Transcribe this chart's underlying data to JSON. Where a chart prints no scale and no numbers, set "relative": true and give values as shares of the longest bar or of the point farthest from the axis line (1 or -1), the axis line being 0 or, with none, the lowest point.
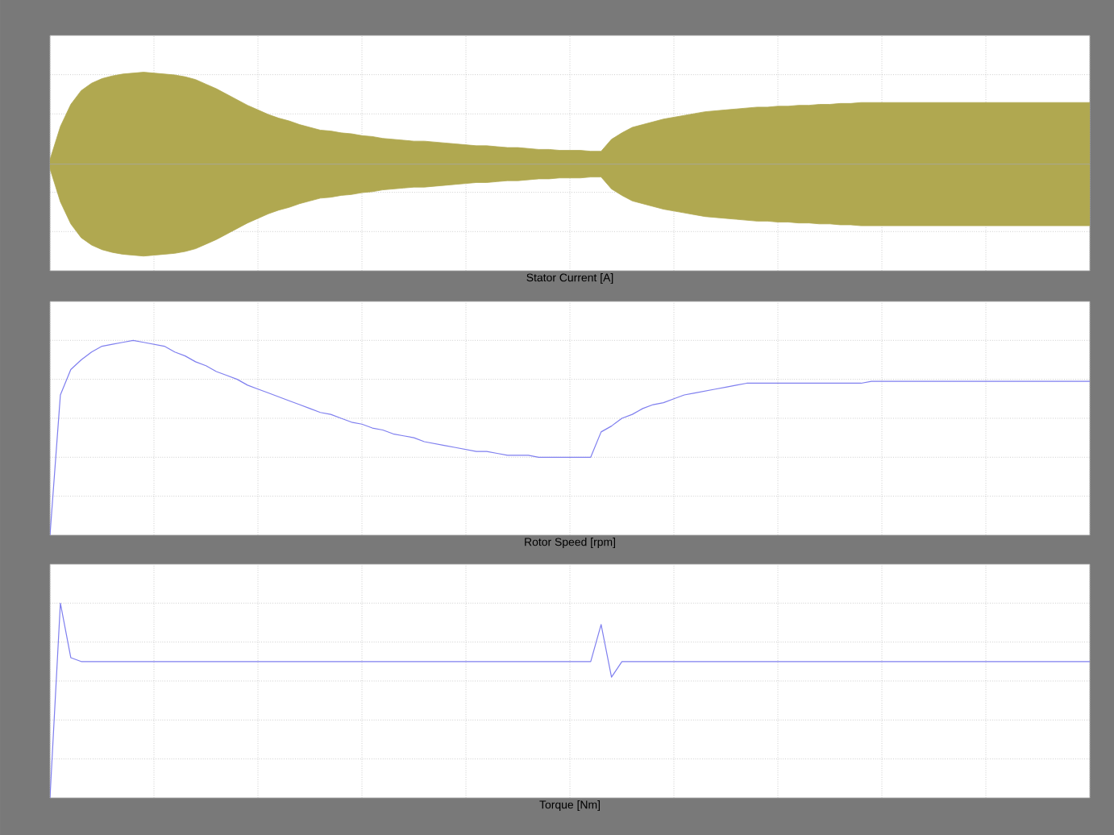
{
  "chart_data": [
    {
      "type": "area",
      "title": "Stator Current [A]",
      "relative": true,
      "grid": true,
      "categories": [
        null,
        null,
        null,
        null,
        null,
        null,
        null,
        null,
        null,
        null,
        null,
        null,
        null,
        null,
        null,
        null,
        null,
        null,
        null,
        null,
        null,
        null,
        null,
        null,
        null,
        null,
        null,
        null,
        null,
        null,
        null,
        null,
        null,
        null,
        null,
        null,
        null,
        null,
        null,
        null,
        null,
        null,
        null,
        null,
        null,
        null,
        null,
        null,
        null,
        null,
        null,
        null,
        null,
        null,
        null,
        null,
        null,
        null,
        null,
        null,
        null,
        null,
        null,
        null,
        null,
        null,
        null,
        null,
        null,
        null,
        null,
        null,
        null,
        null,
        null,
        null,
        null,
        null,
        null,
        null,
        null,
        null,
        null,
        null,
        null,
        null,
        null,
        null,
        null,
        null,
        null,
        null,
        null,
        null,
        null,
        null,
        null,
        null,
        null,
        null,
        null
      ],
      "series": [
        {
          "color": "#b0a850",
          "values": [
            0.05,
            0.41,
            0.65,
            0.8,
            0.88,
            0.93,
            0.96,
            0.98,
            0.99,
            1,
            0.99,
            0.98,
            0.97,
            0.95,
            0.92,
            0.87,
            0.82,
            0.76,
            0.7,
            0.64,
            0.59,
            0.54,
            0.5,
            0.47,
            0.43,
            0.4,
            0.37,
            0.36,
            0.34,
            0.33,
            0.31,
            0.3,
            0.28,
            0.27,
            0.26,
            0.25,
            0.25,
            0.24,
            0.23,
            0.22,
            0.21,
            0.2,
            0.2,
            0.19,
            0.18,
            0.18,
            0.17,
            0.16,
            0.16,
            0.15,
            0.15,
            0.15,
            0.14,
            0.14,
            0.27,
            0.34,
            0.4,
            0.43,
            0.46,
            0.49,
            0.51,
            0.53,
            0.55,
            0.57,
            0.58,
            0.59,
            0.6,
            0.61,
            0.62,
            0.62,
            0.63,
            0.63,
            0.64,
            0.64,
            0.65,
            0.65,
            0.66,
            0.66,
            0.67,
            0.67,
            0.67,
            0.67,
            0.67,
            0.67,
            0.67,
            0.67,
            0.67,
            0.67,
            0.67,
            0.67,
            0.67,
            0.67,
            0.67,
            0.67,
            0.67,
            0.67,
            0.67,
            0.67,
            0.67,
            0.67,
            0.67
          ]
        },
        {
          "color": "#b0a850",
          "values": [
            -0.05,
            -0.41,
            -0.65,
            -0.8,
            -0.88,
            -0.93,
            -0.96,
            -0.98,
            -0.99,
            -1,
            -0.99,
            -0.98,
            -0.97,
            -0.95,
            -0.92,
            -0.87,
            -0.82,
            -0.76,
            -0.7,
            -0.64,
            -0.59,
            -0.54,
            -0.5,
            -0.47,
            -0.43,
            -0.4,
            -0.37,
            -0.36,
            -0.34,
            -0.33,
            -0.31,
            -0.3,
            -0.28,
            -0.27,
            -0.26,
            -0.25,
            -0.25,
            -0.24,
            -0.23,
            -0.22,
            -0.21,
            -0.2,
            -0.2,
            -0.19,
            -0.18,
            -0.18,
            -0.17,
            -0.16,
            -0.16,
            -0.15,
            -0.15,
            -0.15,
            -0.14,
            -0.14,
            -0.27,
            -0.34,
            -0.4,
            -0.43,
            -0.46,
            -0.49,
            -0.51,
            -0.53,
            -0.55,
            -0.57,
            -0.58,
            -0.59,
            -0.6,
            -0.61,
            -0.62,
            -0.62,
            -0.63,
            -0.63,
            -0.64,
            -0.64,
            -0.65,
            -0.65,
            -0.66,
            -0.66,
            -0.67,
            -0.67,
            -0.67,
            -0.67,
            -0.67,
            -0.67,
            -0.67,
            -0.67,
            -0.67,
            -0.67,
            -0.67,
            -0.67,
            -0.67,
            -0.67,
            -0.67,
            -0.67,
            -0.67,
            -0.67,
            -0.67,
            -0.67,
            -0.67,
            -0.67,
            -0.67
          ]
        }
      ]
    },
    {
      "type": "line",
      "title": "Rotor Speed [rpm]",
      "relative": true,
      "grid": true,
      "categories": [
        null,
        null,
        null,
        null,
        null,
        null,
        null,
        null,
        null,
        null,
        null,
        null,
        null,
        null,
        null,
        null,
        null,
        null,
        null,
        null,
        null,
        null,
        null,
        null,
        null,
        null,
        null,
        null,
        null,
        null,
        null,
        null,
        null,
        null,
        null,
        null,
        null,
        null,
        null,
        null,
        null,
        null,
        null,
        null,
        null,
        null,
        null,
        null,
        null,
        null,
        null,
        null,
        null,
        null,
        null,
        null,
        null,
        null,
        null,
        null,
        null,
        null,
        null,
        null,
        null,
        null,
        null,
        null,
        null,
        null,
        null,
        null,
        null,
        null,
        null,
        null,
        null,
        null,
        null,
        null,
        null,
        null,
        null,
        null,
        null,
        null,
        null,
        null,
        null,
        null,
        null,
        null,
        null,
        null,
        null,
        null,
        null,
        null,
        null,
        null,
        null
      ],
      "series": [
        {
          "color": "#7f7fef",
          "values": [
            0,
            0.72,
            0.85,
            0.9,
            0.94,
            0.97,
            0.98,
            0.99,
            1,
            0.99,
            0.98,
            0.97,
            0.94,
            0.92,
            0.89,
            0.87,
            0.84,
            0.82,
            0.8,
            0.77,
            0.75,
            0.73,
            0.71,
            0.69,
            0.67,
            0.65,
            0.63,
            0.62,
            0.6,
            0.58,
            0.57,
            0.55,
            0.54,
            0.52,
            0.51,
            0.5,
            0.48,
            0.47,
            0.46,
            0.45,
            0.44,
            0.43,
            0.43,
            0.42,
            0.41,
            0.41,
            0.41,
            0.4,
            0.4,
            0.4,
            0.4,
            0.4,
            0.4,
            0.53,
            0.56,
            0.6,
            0.62,
            0.65,
            0.67,
            0.68,
            0.7,
            0.72,
            0.73,
            0.74,
            0.75,
            0.76,
            0.77,
            0.78,
            0.78,
            0.78,
            0.78,
            0.78,
            0.78,
            0.78,
            0.78,
            0.78,
            0.78,
            0.78,
            0.78,
            0.79,
            0.79,
            0.79,
            0.79,
            0.79,
            0.79,
            0.79,
            0.79,
            0.79,
            0.79,
            0.79,
            0.79,
            0.79,
            0.79,
            0.79,
            0.79,
            0.79,
            0.79,
            0.79,
            0.79,
            0.79,
            0.79
          ]
        }
      ]
    },
    {
      "type": "line",
      "title": "Torque [Nm]",
      "relative": true,
      "grid": true,
      "categories": [
        null,
        null,
        null,
        null,
        null,
        null,
        null,
        null,
        null,
        null,
        null,
        null,
        null,
        null,
        null,
        null,
        null,
        null,
        null,
        null,
        null,
        null,
        null,
        null,
        null,
        null,
        null,
        null,
        null,
        null,
        null,
        null,
        null,
        null,
        null,
        null,
        null,
        null,
        null,
        null,
        null,
        null,
        null,
        null,
        null,
        null,
        null,
        null,
        null,
        null,
        null,
        null,
        null,
        null,
        null,
        null,
        null,
        null,
        null,
        null,
        null,
        null,
        null,
        null,
        null,
        null,
        null,
        null,
        null,
        null,
        null,
        null,
        null,
        null,
        null,
        null,
        null,
        null,
        null,
        null,
        null,
        null,
        null,
        null,
        null,
        null,
        null,
        null,
        null,
        null,
        null,
        null,
        null,
        null,
        null,
        null,
        null,
        null,
        null,
        null,
        null
      ],
      "series": [
        {
          "color": "#7f7fef",
          "values": [
            0,
            1,
            0.72,
            0.7,
            0.7,
            0.7,
            0.7,
            0.7,
            0.7,
            0.7,
            0.7,
            0.7,
            0.7,
            0.7,
            0.7,
            0.7,
            0.7,
            0.7,
            0.7,
            0.7,
            0.7,
            0.7,
            0.7,
            0.7,
            0.7,
            0.7,
            0.7,
            0.7,
            0.7,
            0.7,
            0.7,
            0.7,
            0.7,
            0.7,
            0.7,
            0.7,
            0.7,
            0.7,
            0.7,
            0.7,
            0.7,
            0.7,
            0.7,
            0.7,
            0.7,
            0.7,
            0.7,
            0.7,
            0.7,
            0.7,
            0.7,
            0.7,
            0.7,
            0.89,
            0.62,
            0.7,
            0.7,
            0.7,
            0.7,
            0.7,
            0.7,
            0.7,
            0.7,
            0.7,
            0.7,
            0.7,
            0.7,
            0.7,
            0.7,
            0.7,
            0.7,
            0.7,
            0.7,
            0.7,
            0.7,
            0.7,
            0.7,
            0.7,
            0.7,
            0.7,
            0.7,
            0.7,
            0.7,
            0.7,
            0.7,
            0.7,
            0.7,
            0.7,
            0.7,
            0.7,
            0.7,
            0.7,
            0.7,
            0.7,
            0.7,
            0.7,
            0.7,
            0.7,
            0.7,
            0.7,
            0.7
          ]
        }
      ]
    }
  ]
}
